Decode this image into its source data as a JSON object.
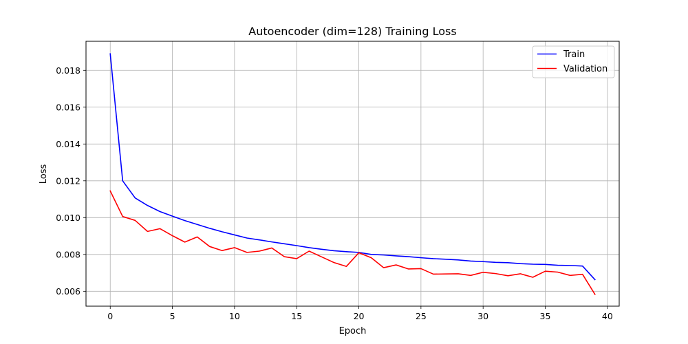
{
  "chart_data": {
    "type": "line",
    "title": "Autoencoder (dim=128) Training Loss",
    "xlabel": "Epoch",
    "ylabel": "Loss",
    "xlim": [
      -1.95,
      40.95
    ],
    "ylim": [
      0.00519,
      0.01958
    ],
    "xticks": [
      0,
      5,
      10,
      15,
      20,
      25,
      30,
      35,
      40
    ],
    "yticks": [
      0.006,
      0.008,
      0.01,
      0.012,
      0.014,
      0.016,
      0.018
    ],
    "ytick_labels": [
      "0.006",
      "0.008",
      "0.010",
      "0.012",
      "0.014",
      "0.016",
      "0.018"
    ],
    "grid": true,
    "legend_position": "top-right",
    "x": [
      0,
      1,
      2,
      3,
      4,
      5,
      6,
      7,
      8,
      9,
      10,
      11,
      12,
      13,
      14,
      15,
      16,
      17,
      18,
      19,
      20,
      21,
      22,
      23,
      24,
      25,
      26,
      27,
      28,
      29,
      30,
      31,
      32,
      33,
      34,
      35,
      36,
      37,
      38,
      39
    ],
    "series": [
      {
        "name": "Train",
        "color": "#0000ff",
        "values": [
          0.0189,
          0.012,
          0.01107,
          0.01066,
          0.01033,
          0.01008,
          0.00984,
          0.00963,
          0.00942,
          0.00923,
          0.00906,
          0.00889,
          0.00879,
          0.00868,
          0.00858,
          0.00848,
          0.00837,
          0.00828,
          0.0082,
          0.00815,
          0.00811,
          0.008,
          0.00797,
          0.00792,
          0.00788,
          0.00782,
          0.00777,
          0.00774,
          0.0077,
          0.00764,
          0.00761,
          0.00757,
          0.00755,
          0.0075,
          0.00747,
          0.00746,
          0.00741,
          0.0074,
          0.00737,
          0.00663
        ]
      },
      {
        "name": "Validation",
        "color": "#ff0000",
        "values": [
          0.01145,
          0.01006,
          0.00985,
          0.00925,
          0.0094,
          0.00902,
          0.00867,
          0.00895,
          0.00843,
          0.00821,
          0.00837,
          0.00811,
          0.00818,
          0.00835,
          0.00788,
          0.00777,
          0.00818,
          0.00787,
          0.00756,
          0.00735,
          0.00809,
          0.00782,
          0.00728,
          0.00743,
          0.00721,
          0.00723,
          0.00693,
          0.00694,
          0.00695,
          0.00686,
          0.00703,
          0.00696,
          0.00684,
          0.00695,
          0.00676,
          0.00709,
          0.00704,
          0.00686,
          0.00692,
          0.00583
        ]
      }
    ]
  }
}
